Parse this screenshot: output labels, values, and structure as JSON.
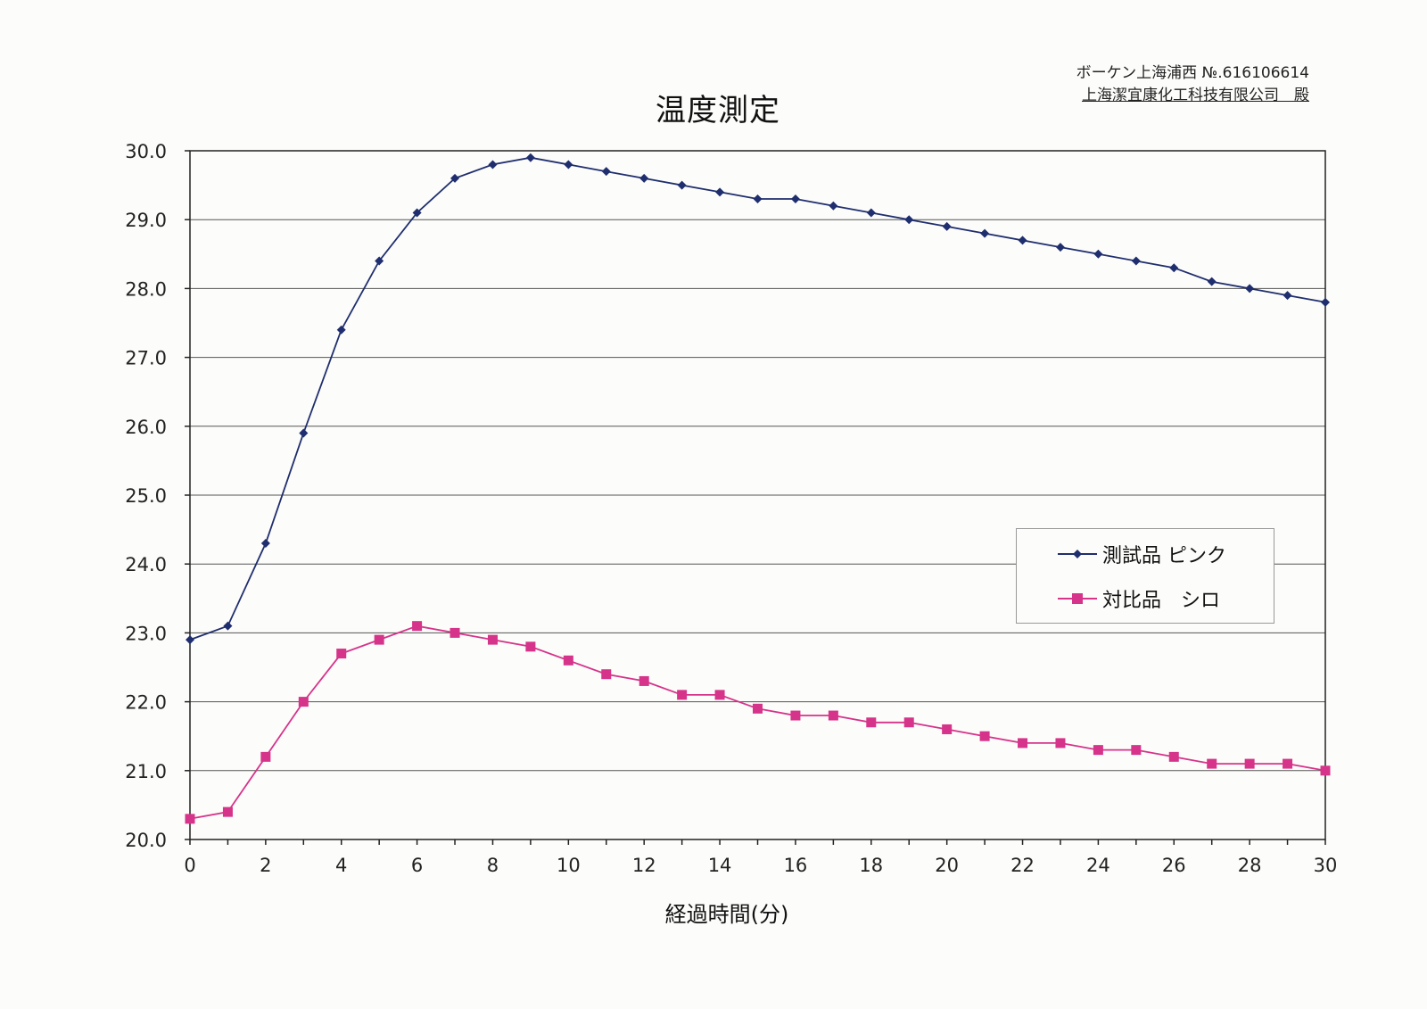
{
  "header": {
    "line1": "ボーケン上海浦西 №.616106614",
    "line2": "上海潔宜康化工科技有限公司　殿"
  },
  "chart_data": {
    "type": "line",
    "title": "温度測定",
    "xlabel": "経過時間(分)",
    "ylabel": "",
    "x": [
      0,
      1,
      2,
      3,
      4,
      5,
      6,
      7,
      8,
      9,
      10,
      11,
      12,
      13,
      14,
      15,
      16,
      17,
      18,
      19,
      20,
      21,
      22,
      23,
      24,
      25,
      26,
      27,
      28,
      29,
      30
    ],
    "xlim": [
      0,
      30
    ],
    "ylim": [
      20.0,
      30.0
    ],
    "xticks": [
      "0",
      "2",
      "4",
      "6",
      "8",
      "10",
      "12",
      "14",
      "16",
      "18",
      "20",
      "22",
      "24",
      "26",
      "28",
      "30"
    ],
    "yticks": [
      "20.0",
      "21.0",
      "22.0",
      "23.0",
      "24.0",
      "25.0",
      "26.0",
      "27.0",
      "28.0",
      "29.0",
      "30.0"
    ],
    "grid": "horizontal",
    "legend_position": "right",
    "series": [
      {
        "name": "測試品 ピンク",
        "color": "#1f2e6e",
        "marker": "diamond",
        "values": [
          22.9,
          23.1,
          24.3,
          25.9,
          27.4,
          28.4,
          29.1,
          29.6,
          29.8,
          29.9,
          29.8,
          29.7,
          29.6,
          29.5,
          29.4,
          29.3,
          29.3,
          29.2,
          29.1,
          29.0,
          28.9,
          28.8,
          28.7,
          28.6,
          28.5,
          28.4,
          28.3,
          28.1,
          28.0,
          27.9,
          27.8
        ]
      },
      {
        "name": "対比品　シロ",
        "color": "#d6338a",
        "marker": "square",
        "values": [
          20.3,
          20.4,
          21.2,
          22.0,
          22.7,
          22.9,
          23.1,
          23.0,
          22.9,
          22.8,
          22.6,
          22.4,
          22.3,
          22.1,
          22.1,
          21.9,
          21.8,
          21.8,
          21.7,
          21.7,
          21.6,
          21.5,
          21.4,
          21.4,
          21.3,
          21.3,
          21.2,
          21.1,
          21.1,
          21.1,
          21.0
        ]
      }
    ]
  }
}
